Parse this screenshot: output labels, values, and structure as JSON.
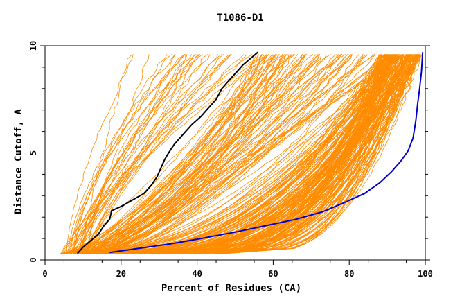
{
  "chart_data": {
    "type": "line",
    "title": "T1086-D1",
    "xlabel": "Percent of Residues (CA)",
    "ylabel": "Distance Cutoff, A",
    "xlim": [
      0,
      100
    ],
    "ylim": [
      0,
      10
    ],
    "x_ticks": [
      "0",
      "20",
      "40",
      "60",
      "80",
      "100"
    ],
    "y_ticks": [
      "0",
      "5",
      "10"
    ],
    "grid": false,
    "legend": "none",
    "colors": {
      "background_curves": "#ff8c00",
      "highlight_black": "#000000",
      "highlight_blue": "#0000cd",
      "axis": "#000000"
    },
    "background_curve_count": 300,
    "highlight_series": [
      {
        "color": "#000000",
        "points": [
          [
            8.5,
            0.3
          ],
          [
            10,
            0.6
          ],
          [
            12,
            0.9
          ],
          [
            14,
            1.2
          ],
          [
            15.5,
            1.6
          ],
          [
            17,
            1.9
          ],
          [
            17.5,
            2.3
          ],
          [
            20,
            2.5
          ],
          [
            23,
            2.8
          ],
          [
            26,
            3.1
          ],
          [
            28,
            3.5
          ],
          [
            29.5,
            3.9
          ],
          [
            30.5,
            4.3
          ],
          [
            31.5,
            4.7
          ],
          [
            32.5,
            5.0
          ],
          [
            34,
            5.4
          ],
          [
            36,
            5.8
          ],
          [
            38.5,
            6.3
          ],
          [
            41,
            6.7
          ],
          [
            43,
            7.1
          ],
          [
            45,
            7.5
          ],
          [
            46.5,
            8.0
          ],
          [
            48,
            8.3
          ],
          [
            50,
            8.7
          ],
          [
            52,
            9.1
          ],
          [
            54,
            9.4
          ],
          [
            56,
            9.7
          ]
        ]
      },
      {
        "color": "#0000cd",
        "points": [
          [
            17,
            0.35
          ],
          [
            25,
            0.55
          ],
          [
            33,
            0.75
          ],
          [
            41,
            1.0
          ],
          [
            50,
            1.3
          ],
          [
            58,
            1.6
          ],
          [
            66,
            1.9
          ],
          [
            73,
            2.25
          ],
          [
            79,
            2.7
          ],
          [
            84,
            3.1
          ],
          [
            88,
            3.6
          ],
          [
            91,
            4.1
          ],
          [
            93.5,
            4.6
          ],
          [
            95.5,
            5.1
          ],
          [
            96.8,
            5.7
          ],
          [
            97.5,
            6.5
          ],
          [
            98,
            7.3
          ],
          [
            98.5,
            8.0
          ],
          [
            99,
            8.8
          ],
          [
            99.3,
            9.7
          ]
        ]
      }
    ]
  }
}
